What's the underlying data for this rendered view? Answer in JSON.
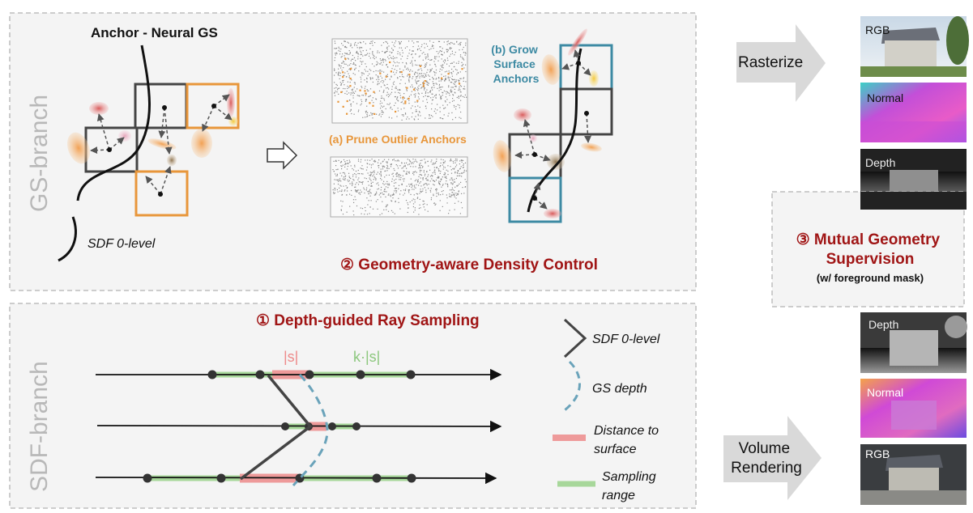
{
  "gs_branch": {
    "side_label": "GS-branch",
    "anchor_title": "Anchor - Neural GS",
    "sdf_legend": "SDF 0-level",
    "prune_label": "(a) Prune Outlier Anchors",
    "grow_label": [
      "(b) Grow",
      "Surface",
      "Anchors"
    ],
    "step2_title": "② Geometry-aware Density Control"
  },
  "sdf_branch": {
    "side_label": "SDF-branch",
    "step1_title": "① Depth-guided Ray Sampling",
    "s_label": "|s|",
    "ks_label": "k·|s|",
    "legend": {
      "sdf": "SDF 0-level",
      "gs_depth": "GS depth",
      "distance": [
        "Distance to",
        "surface"
      ],
      "sampling": [
        "Sampling",
        "range"
      ]
    }
  },
  "right": {
    "rasterize": "Rasterize",
    "volume_rendering": [
      "Volume",
      "Rendering"
    ],
    "step3_title": [
      "③ Mutual Geometry",
      "Supervision"
    ],
    "step3_sub": "(w/ foreground mask)",
    "top_images": [
      "RGB",
      "Normal",
      "Depth"
    ],
    "bottom_images": [
      "Depth",
      "Normal",
      "RGB"
    ]
  },
  "colors": {
    "dark_red": "#a01515",
    "orange": "#e8963a",
    "teal": "#3d8aa3",
    "box_gray": "#444444",
    "pink": "#ee9a9a",
    "green": "#a7d79a",
    "dash_blue": "#6aa3ba",
    "panel_bg": "#f4f4f4"
  }
}
